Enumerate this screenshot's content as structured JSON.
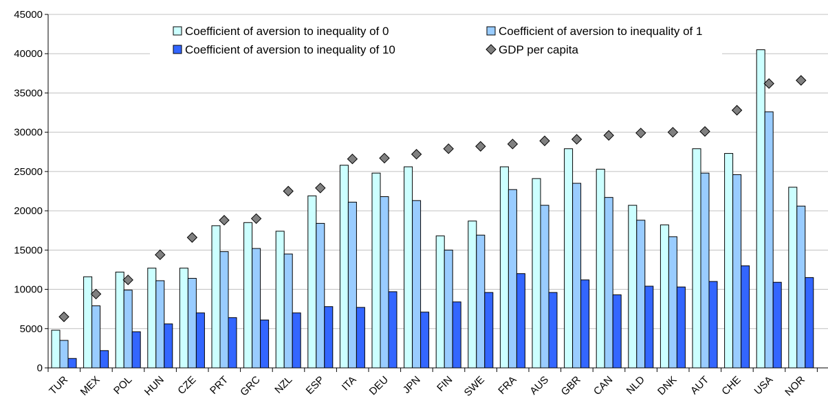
{
  "chart_data": {
    "type": "bar",
    "title": "",
    "xlabel": "",
    "ylabel": "",
    "ylim": [
      0,
      45000
    ],
    "yticks": [
      0,
      5000,
      10000,
      15000,
      20000,
      25000,
      30000,
      35000,
      40000,
      45000
    ],
    "grid": true,
    "legend_position": "top",
    "categories": [
      "TUR",
      "MEX",
      "POL",
      "HUN",
      "CZE",
      "PRT",
      "GRC",
      "NZL",
      "ESP",
      "ITA",
      "DEU",
      "JPN",
      "FIN",
      "SWE",
      "FRA",
      "AUS",
      "GBR",
      "CAN",
      "NLD",
      "DNK",
      "AUT",
      "CHE",
      "USA",
      "NOR"
    ],
    "series": [
      {
        "name": "Coefficient of aversion to inequality of 0",
        "kind": "bar",
        "color": "#ccffff",
        "values": [
          4800,
          11600,
          12200,
          12700,
          12700,
          18100,
          18500,
          17400,
          21900,
          25800,
          24800,
          25600,
          16800,
          18700,
          25600,
          24100,
          27900,
          25300,
          20700,
          18200,
          27900,
          27300,
          40500,
          23000
        ]
      },
      {
        "name": "Coefficient of aversion to inequality of 1",
        "kind": "bar",
        "color": "#99ccff",
        "values": [
          3500,
          7900,
          9900,
          11100,
          11400,
          14800,
          15200,
          14500,
          18400,
          21100,
          21800,
          21300,
          15000,
          16900,
          22700,
          20700,
          23500,
          21700,
          18800,
          16700,
          24800,
          24600,
          32600,
          20600
        ]
      },
      {
        "name": "Coefficient of aversion to inequality of 10",
        "kind": "bar",
        "color": "#3366ff",
        "values": [
          1200,
          2200,
          4600,
          5600,
          7000,
          6400,
          6100,
          7000,
          7800,
          7700,
          9700,
          7100,
          8400,
          9600,
          12000,
          9600,
          11200,
          9300,
          10400,
          10300,
          11000,
          13000,
          10900,
          11500
        ]
      },
      {
        "name": "GDP per capita",
        "kind": "marker",
        "color": "#808080",
        "values": [
          6500,
          9400,
          11200,
          14400,
          16600,
          18800,
          19000,
          22500,
          22900,
          26600,
          26700,
          27200,
          27900,
          28200,
          28500,
          28900,
          29100,
          29600,
          29900,
          30000,
          30100,
          32800,
          36200,
          36600
        ]
      }
    ]
  }
}
